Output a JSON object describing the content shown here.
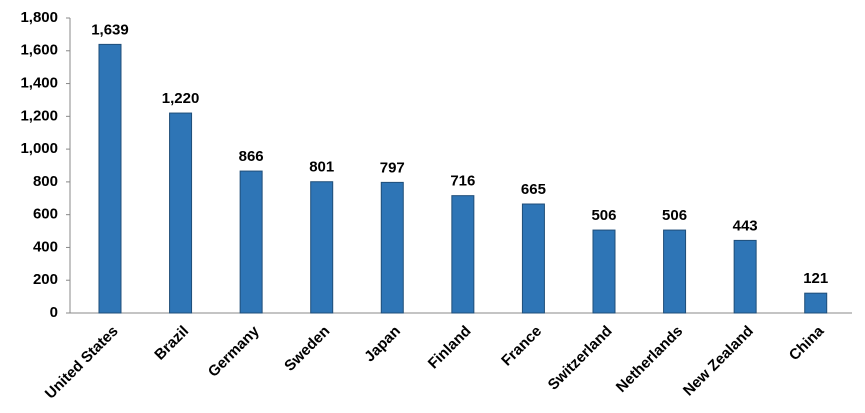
{
  "chart_data": {
    "type": "bar",
    "categories": [
      "United States",
      "Brazil",
      "Germany",
      "Sweden",
      "Japan",
      "Finland",
      "France",
      "Switzerland",
      "Netherlands",
      "New Zealand",
      "China"
    ],
    "values": [
      1639,
      1220,
      866,
      801,
      797,
      716,
      665,
      506,
      506,
      443,
      121
    ],
    "value_labels": [
      "1,639",
      "1,220",
      "866",
      "801",
      "797",
      "716",
      "665",
      "506",
      "506",
      "443",
      "121"
    ],
    "color": "#2e75b6",
    "ylim": [
      0,
      1800
    ],
    "yticks": [
      0,
      200,
      400,
      600,
      800,
      {
        "value": 1000,
        "label": "1,000"
      },
      {
        "value": 1200,
        "label": "1,200"
      },
      {
        "value": 1400,
        "label": "1,400"
      },
      {
        "value": 1600,
        "label": "1,600"
      },
      {
        "value": 1800,
        "label": "1,800"
      }
    ],
    "grid": false
  }
}
